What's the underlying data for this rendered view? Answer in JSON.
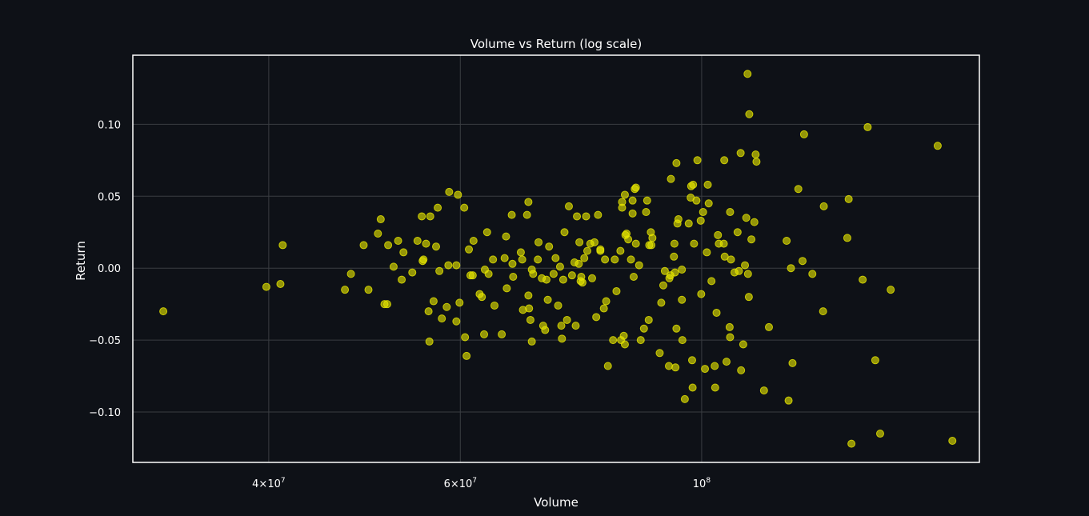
{
  "chart_data": {
    "type": "scatter",
    "title": "Volume vs Return (log scale)",
    "xlabel": "Volume",
    "ylabel": "Return",
    "xscale": "log",
    "xlim": [
      30000000,
      180000000
    ],
    "ylim": [
      -0.135,
      0.148
    ],
    "grid": true,
    "background": "#0e1117",
    "point_color": "#e6e600",
    "x_ticks": [
      {
        "value": 40000000,
        "mant": "4",
        "exp": "7"
      },
      {
        "value": 60000000,
        "mant": "6",
        "exp": "7"
      },
      {
        "value": 100000000,
        "mant": "",
        "exp": "8"
      }
    ],
    "y_ticks": [
      {
        "value": 0.1,
        "label": "0.10"
      },
      {
        "value": 0.05,
        "label": "0.05"
      },
      {
        "value": 0.0,
        "label": "0.00"
      },
      {
        "value": -0.05,
        "label": "−0.05"
      },
      {
        "value": -0.1,
        "label": "−0.10"
      }
    ],
    "points": [
      {
        "x": 32000000,
        "y": -0.03
      },
      {
        "x": 39800000,
        "y": -0.013
      },
      {
        "x": 41000000,
        "y": -0.011
      },
      {
        "x": 41200000,
        "y": 0.016
      },
      {
        "x": 47000000,
        "y": -0.015
      },
      {
        "x": 47600000,
        "y": -0.004
      },
      {
        "x": 48900000,
        "y": 0.016
      },
      {
        "x": 49400000,
        "y": -0.015
      },
      {
        "x": 50400000,
        "y": 0.024
      },
      {
        "x": 50700000,
        "y": 0.034
      },
      {
        "x": 51100000,
        "y": -0.025
      },
      {
        "x": 51400000,
        "y": -0.025
      },
      {
        "x": 51500000,
        "y": 0.016
      },
      {
        "x": 52100000,
        "y": 0.001
      },
      {
        "x": 52600000,
        "y": 0.019
      },
      {
        "x": 53000000,
        "y": -0.008
      },
      {
        "x": 53200000,
        "y": 0.011
      },
      {
        "x": 54200000,
        "y": -0.003
      },
      {
        "x": 54800000,
        "y": 0.019
      },
      {
        "x": 55300000,
        "y": 0.036
      },
      {
        "x": 55400000,
        "y": 0.005
      },
      {
        "x": 55500000,
        "y": 0.006
      },
      {
        "x": 55800000,
        "y": 0.017
      },
      {
        "x": 56100000,
        "y": -0.03
      },
      {
        "x": 56300000,
        "y": 0.036
      },
      {
        "x": 56200000,
        "y": -0.051
      },
      {
        "x": 56700000,
        "y": -0.023
      },
      {
        "x": 57000000,
        "y": 0.015
      },
      {
        "x": 57200000,
        "y": 0.042
      },
      {
        "x": 57400000,
        "y": -0.002
      },
      {
        "x": 57700000,
        "y": -0.035
      },
      {
        "x": 58300000,
        "y": -0.027
      },
      {
        "x": 58600000,
        "y": 0.053
      },
      {
        "x": 58500000,
        "y": 0.002
      },
      {
        "x": 59500000,
        "y": 0.002
      },
      {
        "x": 59500000,
        "y": -0.037
      },
      {
        "x": 59700000,
        "y": 0.051
      },
      {
        "x": 59900000,
        "y": -0.024
      },
      {
        "x": 60500000,
        "y": 0.042
      },
      {
        "x": 60600000,
        "y": -0.048
      },
      {
        "x": 60800000,
        "y": -0.061
      },
      {
        "x": 61100000,
        "y": 0.013
      },
      {
        "x": 61300000,
        "y": -0.005
      },
      {
        "x": 61700000,
        "y": 0.019
      },
      {
        "x": 61600000,
        "y": -0.005
      },
      {
        "x": 62500000,
        "y": -0.018
      },
      {
        "x": 62800000,
        "y": -0.02
      },
      {
        "x": 63100000,
        "y": -0.046
      },
      {
        "x": 63200000,
        "y": -0.001
      },
      {
        "x": 63500000,
        "y": 0.025
      },
      {
        "x": 63700000,
        "y": -0.004
      },
      {
        "x": 64300000,
        "y": 0.006
      },
      {
        "x": 64500000,
        "y": -0.026
      },
      {
        "x": 65500000,
        "y": -0.046
      },
      {
        "x": 65900000,
        "y": 0.007
      },
      {
        "x": 66100000,
        "y": 0.022
      },
      {
        "x": 66200000,
        "y": -0.014
      },
      {
        "x": 66900000,
        "y": 0.037
      },
      {
        "x": 67000000,
        "y": 0.003
      },
      {
        "x": 67100000,
        "y": -0.006
      },
      {
        "x": 68200000,
        "y": 0.011
      },
      {
        "x": 68400000,
        "y": 0.006
      },
      {
        "x": 68500000,
        "y": -0.029
      },
      {
        "x": 69100000,
        "y": 0.037
      },
      {
        "x": 69300000,
        "y": 0.046
      },
      {
        "x": 69300000,
        "y": -0.019
      },
      {
        "x": 69400000,
        "y": -0.028
      },
      {
        "x": 69600000,
        "y": -0.036
      },
      {
        "x": 69800000,
        "y": -0.051
      },
      {
        "x": 69800000,
        "y": -0.001
      },
      {
        "x": 70000000,
        "y": -0.004
      },
      {
        "x": 70800000,
        "y": 0.018
      },
      {
        "x": 70700000,
        "y": 0.006
      },
      {
        "x": 71300000,
        "y": -0.007
      },
      {
        "x": 71500000,
        "y": -0.04
      },
      {
        "x": 71800000,
        "y": -0.043
      },
      {
        "x": 72000000,
        "y": -0.008
      },
      {
        "x": 72200000,
        "y": -0.022
      },
      {
        "x": 72400000,
        "y": 0.015
      },
      {
        "x": 73100000,
        "y": -0.004
      },
      {
        "x": 73400000,
        "y": 0.007
      },
      {
        "x": 73800000,
        "y": -0.026
      },
      {
        "x": 74100000,
        "y": 0.001
      },
      {
        "x": 74300000,
        "y": -0.04
      },
      {
        "x": 74400000,
        "y": -0.049
      },
      {
        "x": 74800000,
        "y": 0.025
      },
      {
        "x": 74600000,
        "y": -0.008
      },
      {
        "x": 75200000,
        "y": -0.036
      },
      {
        "x": 75500000,
        "y": 0.043
      },
      {
        "x": 76000000,
        "y": -0.005
      },
      {
        "x": 76400000,
        "y": 0.004
      },
      {
        "x": 76600000,
        "y": -0.04
      },
      {
        "x": 76800000,
        "y": 0.036
      },
      {
        "x": 77100000,
        "y": 0.003
      },
      {
        "x": 77200000,
        "y": 0.018
      },
      {
        "x": 77400000,
        "y": -0.009
      },
      {
        "x": 77500000,
        "y": -0.006
      },
      {
        "x": 77700000,
        "y": -0.01
      },
      {
        "x": 78000000,
        "y": 0.007
      },
      {
        "x": 78300000,
        "y": 0.036
      },
      {
        "x": 78500000,
        "y": 0.012
      },
      {
        "x": 79000000,
        "y": 0.017
      },
      {
        "x": 79300000,
        "y": -0.007
      },
      {
        "x": 79700000,
        "y": 0.018
      },
      {
        "x": 80000000,
        "y": -0.034
      },
      {
        "x": 80300000,
        "y": 0.037
      },
      {
        "x": 80700000,
        "y": 0.012
      },
      {
        "x": 80700000,
        "y": 0.013
      },
      {
        "x": 81300000,
        "y": -0.028
      },
      {
        "x": 81500000,
        "y": 0.006
      },
      {
        "x": 81700000,
        "y": -0.023
      },
      {
        "x": 82000000,
        "y": -0.068
      },
      {
        "x": 82900000,
        "y": -0.05
      },
      {
        "x": 83200000,
        "y": 0.006
      },
      {
        "x": 83500000,
        "y": -0.016
      },
      {
        "x": 84200000,
        "y": 0.012
      },
      {
        "x": 84300000,
        "y": -0.05
      },
      {
        "x": 84500000,
        "y": 0.042
      },
      {
        "x": 84500000,
        "y": 0.046
      },
      {
        "x": 84800000,
        "y": -0.047
      },
      {
        "x": 85000000,
        "y": -0.053
      },
      {
        "x": 85100000,
        "y": 0.023
      },
      {
        "x": 85000000,
        "y": 0.051
      },
      {
        "x": 85300000,
        "y": 0.024
      },
      {
        "x": 85600000,
        "y": 0.02
      },
      {
        "x": 86100000,
        "y": 0.006
      },
      {
        "x": 86400000,
        "y": 0.038
      },
      {
        "x": 86400000,
        "y": 0.047
      },
      {
        "x": 86600000,
        "y": -0.006
      },
      {
        "x": 86800000,
        "y": 0.055
      },
      {
        "x": 87000000,
        "y": 0.056
      },
      {
        "x": 87000000,
        "y": 0.017
      },
      {
        "x": 87600000,
        "y": 0.002
      },
      {
        "x": 87900000,
        "y": -0.05
      },
      {
        "x": 88500000,
        "y": -0.042
      },
      {
        "x": 88900000,
        "y": 0.039
      },
      {
        "x": 89100000,
        "y": 0.047
      },
      {
        "x": 89400000,
        "y": -0.036
      },
      {
        "x": 89500000,
        "y": 0.016
      },
      {
        "x": 89800000,
        "y": 0.025
      },
      {
        "x": 89900000,
        "y": 0.016
      },
      {
        "x": 90100000,
        "y": 0.021
      },
      {
        "x": 91500000,
        "y": -0.059
      },
      {
        "x": 91800000,
        "y": -0.024
      },
      {
        "x": 92200000,
        "y": -0.012
      },
      {
        "x": 92500000,
        "y": -0.002
      },
      {
        "x": 93300000,
        "y": -0.068
      },
      {
        "x": 93400000,
        "y": -0.007
      },
      {
        "x": 93600000,
        "y": -0.005
      },
      {
        "x": 93700000,
        "y": 0.062
      },
      {
        "x": 94300000,
        "y": 0.008
      },
      {
        "x": 94400000,
        "y": 0.017
      },
      {
        "x": 94500000,
        "y": -0.003
      },
      {
        "x": 94600000,
        "y": -0.069
      },
      {
        "x": 94800000,
        "y": -0.042
      },
      {
        "x": 94800000,
        "y": 0.073
      },
      {
        "x": 95000000,
        "y": 0.031
      },
      {
        "x": 95200000,
        "y": 0.034
      },
      {
        "x": 95900000,
        "y": -0.022
      },
      {
        "x": 95900000,
        "y": -0.001
      },
      {
        "x": 96000000,
        "y": -0.05
      },
      {
        "x": 96500000,
        "y": -0.091
      },
      {
        "x": 97300000,
        "y": 0.031
      },
      {
        "x": 97700000,
        "y": 0.049
      },
      {
        "x": 97800000,
        "y": 0.057
      },
      {
        "x": 98000000,
        "y": -0.064
      },
      {
        "x": 98100000,
        "y": -0.083
      },
      {
        "x": 98200000,
        "y": 0.058
      },
      {
        "x": 98400000,
        "y": 0.017
      },
      {
        "x": 98900000,
        "y": 0.047
      },
      {
        "x": 99100000,
        "y": 0.075
      },
      {
        "x": 99800000,
        "y": 0.033
      },
      {
        "x": 99900000,
        "y": -0.018
      },
      {
        "x": 100300000,
        "y": 0.039
      },
      {
        "x": 100700000,
        "y": -0.07
      },
      {
        "x": 101100000,
        "y": 0.011
      },
      {
        "x": 101300000,
        "y": 0.058
      },
      {
        "x": 101500000,
        "y": 0.045
      },
      {
        "x": 102100000,
        "y": -0.009
      },
      {
        "x": 102800000,
        "y": -0.068
      },
      {
        "x": 102900000,
        "y": -0.083
      },
      {
        "x": 103200000,
        "y": -0.031
      },
      {
        "x": 103500000,
        "y": 0.023
      },
      {
        "x": 103700000,
        "y": 0.017
      },
      {
        "x": 104800000,
        "y": 0.017
      },
      {
        "x": 104900000,
        "y": 0.075
      },
      {
        "x": 105000000,
        "y": 0.008
      },
      {
        "x": 105400000,
        "y": -0.065
      },
      {
        "x": 106100000,
        "y": -0.041
      },
      {
        "x": 106200000,
        "y": -0.048
      },
      {
        "x": 106200000,
        "y": 0.039
      },
      {
        "x": 106400000,
        "y": 0.006
      },
      {
        "x": 107200000,
        "y": -0.003
      },
      {
        "x": 107900000,
        "y": 0.025
      },
      {
        "x": 108200000,
        "y": -0.002
      },
      {
        "x": 108600000,
        "y": 0.08
      },
      {
        "x": 108700000,
        "y": -0.071
      },
      {
        "x": 109200000,
        "y": -0.053
      },
      {
        "x": 109600000,
        "y": 0.002
      },
      {
        "x": 109900000,
        "y": 0.035
      },
      {
        "x": 110200000,
        "y": 0.135
      },
      {
        "x": 110300000,
        "y": -0.004
      },
      {
        "x": 110500000,
        "y": -0.02
      },
      {
        "x": 110600000,
        "y": 0.107
      },
      {
        "x": 111100000,
        "y": 0.02
      },
      {
        "x": 111800000,
        "y": 0.032
      },
      {
        "x": 112100000,
        "y": 0.079
      },
      {
        "x": 112300000,
        "y": 0.074
      },
      {
        "x": 114100000,
        "y": -0.085
      },
      {
        "x": 115300000,
        "y": -0.041
      },
      {
        "x": 119700000,
        "y": 0.019
      },
      {
        "x": 120200000,
        "y": -0.092
      },
      {
        "x": 120800000,
        "y": 0.0
      },
      {
        "x": 121200000,
        "y": -0.066
      },
      {
        "x": 122700000,
        "y": 0.055
      },
      {
        "x": 123800000,
        "y": 0.005
      },
      {
        "x": 124200000,
        "y": 0.093
      },
      {
        "x": 126400000,
        "y": -0.004
      },
      {
        "x": 129500000,
        "y": 0.043
      },
      {
        "x": 129300000,
        "y": -0.03
      },
      {
        "x": 136100000,
        "y": 0.021
      },
      {
        "x": 136500000,
        "y": 0.048
      },
      {
        "x": 137300000,
        "y": -0.122
      },
      {
        "x": 140600000,
        "y": -0.008
      },
      {
        "x": 142100000,
        "y": 0.098
      },
      {
        "x": 144400000,
        "y": -0.064
      },
      {
        "x": 145900000,
        "y": -0.115
      },
      {
        "x": 149200000,
        "y": -0.015
      },
      {
        "x": 164800000,
        "y": 0.085
      },
      {
        "x": 170000000,
        "y": -0.12
      }
    ]
  }
}
